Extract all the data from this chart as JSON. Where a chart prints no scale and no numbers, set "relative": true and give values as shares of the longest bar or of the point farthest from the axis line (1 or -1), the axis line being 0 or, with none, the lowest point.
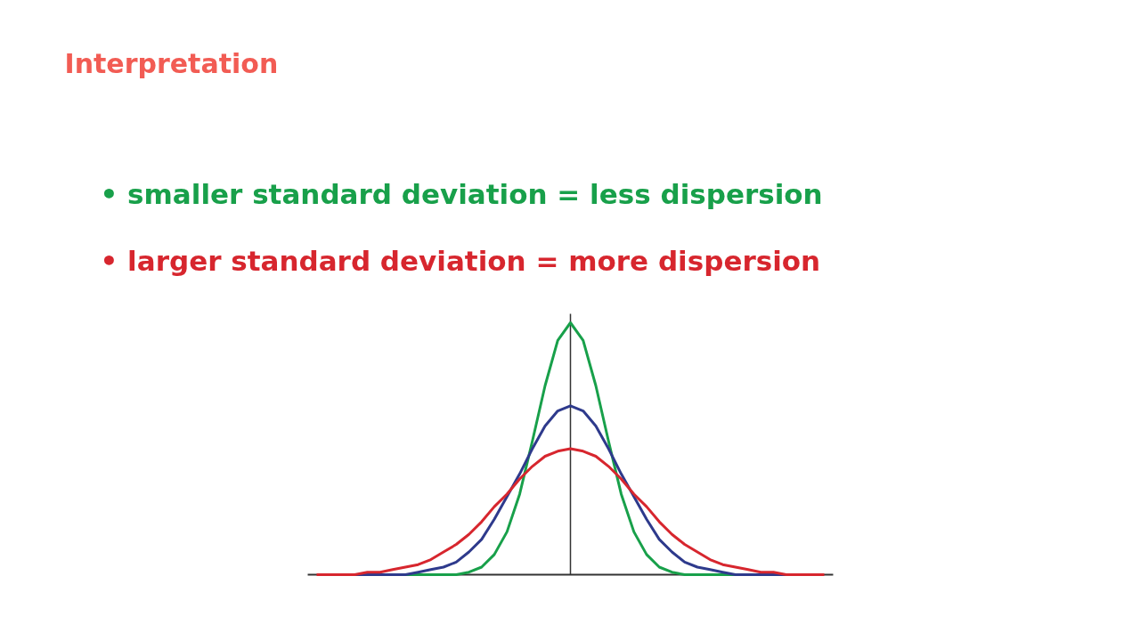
{
  "chart_data": {
    "type": "line",
    "relative": true,
    "title": "Interpretation",
    "annotations": [
      "• smaller standard deviation = less dispersion",
      "• larger standard deviation = more dispersion"
    ],
    "categories": [
      null,
      null,
      null,
      null,
      null,
      null,
      null,
      null,
      null,
      null,
      null,
      null,
      null,
      null,
      null,
      null,
      null,
      null,
      null,
      null,
      null,
      null,
      null,
      null,
      null,
      null,
      null,
      null,
      null,
      null,
      null,
      null,
      null,
      null,
      null,
      null,
      null,
      null,
      null,
      null,
      null
    ],
    "series": [
      {
        "color": "#18a04a",
        "values": [
          null,
          null,
          null,
          null,
          null,
          null,
          0,
          0,
          0,
          0,
          0,
          0,
          0.01,
          0.03,
          0.08,
          0.17,
          0.32,
          0.53,
          0.75,
          0.93,
          1,
          0.93,
          0.75,
          0.53,
          0.32,
          0.17,
          0.08,
          0.03,
          0.01,
          0,
          0,
          0,
          0,
          0,
          0,
          null,
          null,
          null,
          null,
          null,
          null
        ]
      },
      {
        "color": "#2e3a8c",
        "values": [
          null,
          null,
          0,
          0,
          0,
          0,
          0,
          0,
          0.01,
          0.02,
          0.03,
          0.05,
          0.09,
          0.14,
          0.22,
          0.31,
          0.4,
          0.5,
          0.59,
          0.65,
          0.67,
          0.65,
          0.59,
          0.5,
          0.4,
          0.31,
          0.22,
          0.14,
          0.09,
          0.05,
          0.03,
          0.02,
          0.01,
          0,
          0,
          0,
          0,
          0,
          0,
          null,
          null
        ]
      },
      {
        "color": "#d7262e",
        "values": [
          0,
          0,
          0,
          0,
          0.01,
          0.01,
          0.02,
          0.03,
          0.04,
          0.06,
          0.09,
          0.12,
          0.16,
          0.21,
          0.27,
          0.32,
          0.38,
          0.43,
          0.47,
          0.49,
          0.5,
          0.49,
          0.47,
          0.43,
          0.38,
          0.32,
          0.27,
          0.21,
          0.16,
          0.12,
          0.09,
          0.06,
          0.04,
          0.03,
          0.02,
          0.01,
          0.01,
          0,
          0,
          0,
          0
        ]
      }
    ],
    "grid": false
  }
}
